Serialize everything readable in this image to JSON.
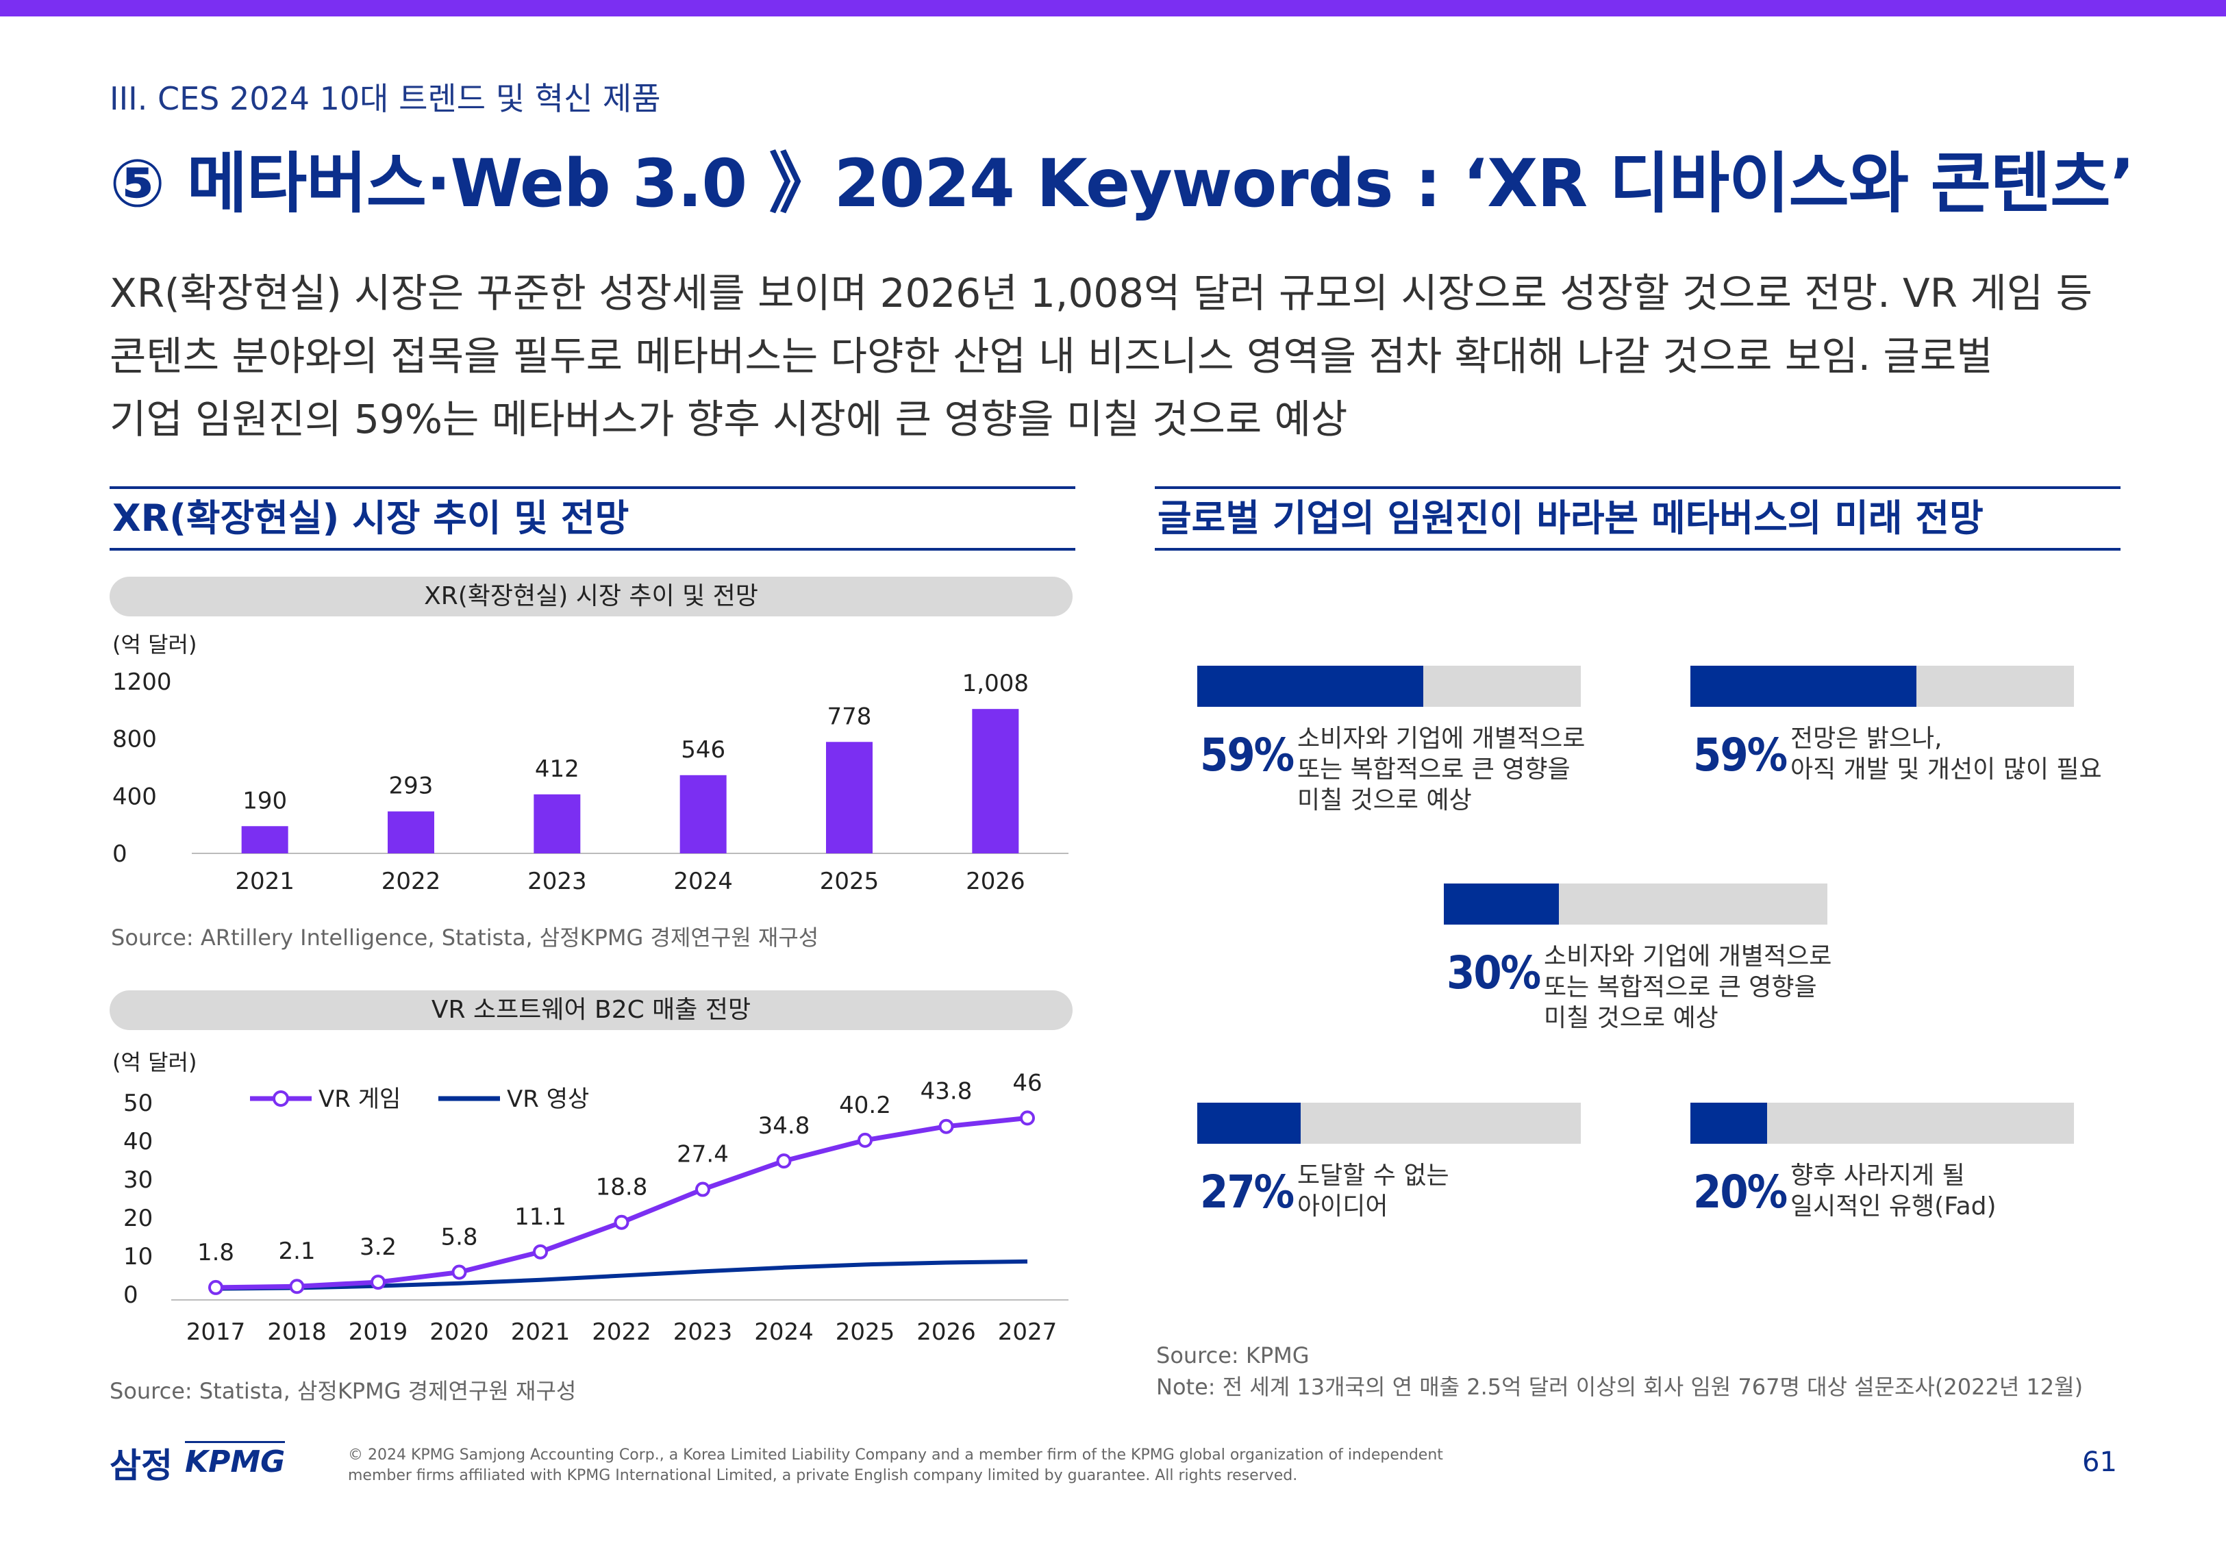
{
  "header": {
    "section": "III. CES 2024 10대 트렌드 및 혁신 제품",
    "title": "⑤ 메타버스·Web 3.0 》2024 Keywords : ‘XR 디바이스와 콘텐츠’"
  },
  "summary": [
    "XR(확장현실) 시장은 꾸준한 성장세를 보이며 2026년 1,008억 달러 규모의 시장으로 성장할 것으로 전망. VR 게임 등",
    "콘텐츠 분야와의 접목을 필두로 메타버스는 다양한 산업 내 비즈니스 영역을 점차 확대해 나갈 것으로 보임. 글로벌",
    "기업 임원진의 59%는 메타버스가 향후 시장에 큰 영향을 미칠 것으로 예상"
  ],
  "left_panel": {
    "title": "XR(확장현실) 시장 추이 및 전망",
    "chart1_source": "Source: ARtillery Intelligence, Statista, 삼정KPMG 경제연구원 재구성",
    "chart2_source": "Source: Statista, 삼정KPMG 경제연구원 재구성"
  },
  "right_panel": {
    "title": "글로벌 기업의 임원진이 바라본 메타버스의 미래 전망",
    "stats": [
      {
        "pct_label": "59%",
        "fraction": 0.59,
        "desc": [
          "소비자와 기업에 개별적으로",
          "또는 복합적으로 큰 영향을",
          "미칠 것으로 예상"
        ]
      },
      {
        "pct_label": "59%",
        "fraction": 0.59,
        "desc": [
          "전망은 밝으나,",
          "아직 개발 및 개선이 많이 필요"
        ]
      },
      {
        "pct_label": "30%",
        "fraction": 0.3,
        "desc": [
          "소비자와 기업에 개별적으로",
          "또는 복합적으로 큰 영향을",
          "미칠 것으로 예상"
        ]
      },
      {
        "pct_label": "27%",
        "fraction": 0.27,
        "desc": [
          "도달할 수 없는",
          "아이디어"
        ]
      },
      {
        "pct_label": "20%",
        "fraction": 0.2,
        "desc": [
          "향후 사라지게 될",
          "일시적인 유행(Fad)"
        ]
      }
    ],
    "source": "Source: KPMG",
    "note": "Note: 전 세계 13개국의 연 매출 2.5억 달러 이상의 회사 임원 767명 대상 설문조사(2022년 12월)"
  },
  "chart_data": [
    {
      "type": "bar",
      "title": "XR(확장현실) 시장 추이 및 전망",
      "ylabel": "(억 달러)",
      "categories": [
        "2021",
        "2022",
        "2023",
        "2024",
        "2025",
        "2026"
      ],
      "values": [
        190,
        293,
        412,
        546,
        778,
        1008
      ],
      "value_labels": [
        "190",
        "293",
        "412",
        "546",
        "778",
        "1,008"
      ],
      "yticks": [
        0,
        400,
        800,
        1200
      ],
      "ylim": [
        0,
        1200
      ],
      "color": "#7b2ff2",
      "grid": false
    },
    {
      "type": "line",
      "title": "VR 소프트웨어 B2C 매출 전망",
      "ylabel": "(억 달러)",
      "x": [
        "2017",
        "2018",
        "2019",
        "2020",
        "2021",
        "2022",
        "2023",
        "2024",
        "2025",
        "2026",
        "2027"
      ],
      "series": [
        {
          "name": "VR 게임",
          "values": [
            1.8,
            2.1,
            3.2,
            5.8,
            11.1,
            18.8,
            27.4,
            34.8,
            40.2,
            43.8,
            46
          ],
          "color": "#7b2ff2",
          "markers": true,
          "labels": true
        },
        {
          "name": "VR 영상",
          "values": [
            1.5,
            1.7,
            2.2,
            2.9,
            3.8,
            4.9,
            6.0,
            7.0,
            7.8,
            8.3,
            8.6
          ],
          "color": "#002f96",
          "markers": false,
          "labels": false
        }
      ],
      "yticks": [
        0,
        10,
        20,
        30,
        40,
        50
      ],
      "ylim": [
        0,
        50
      ],
      "legend": "top-left",
      "grid": false
    }
  ],
  "footer": {
    "logo_kr": "삼정",
    "logo_en": "KPMG",
    "copyright": [
      "© 2024 KPMG Samjong Accounting Corp., a Korea Limited Liability Company and a member firm of the KPMG global organization of independent",
      "member firms affiliated with KPMG International Limited, a private English company limited by guarantee. All rights reserved."
    ],
    "page": "61"
  }
}
